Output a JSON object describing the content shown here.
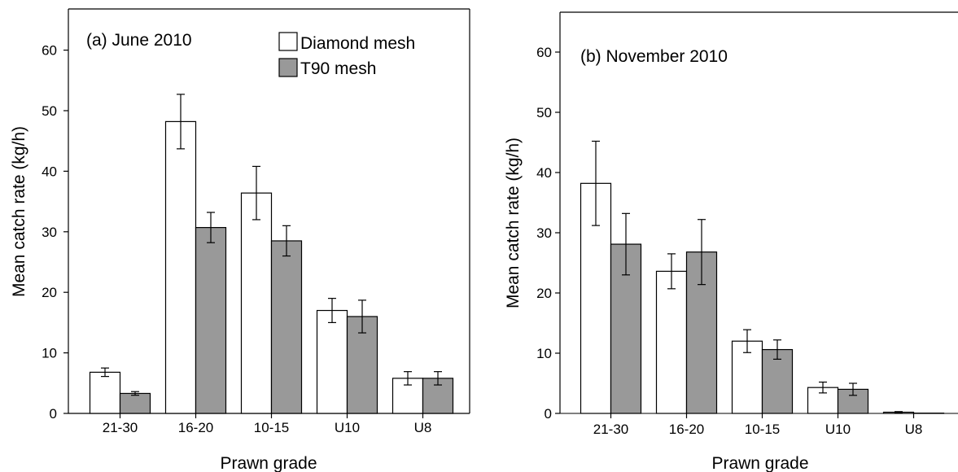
{
  "colors": {
    "diamond": "#ffffff",
    "t90": "#999999",
    "axis": "#000000"
  },
  "chart_data": [
    {
      "type": "bar",
      "title": "(a) June 2010",
      "xlabel": "Prawn grade",
      "ylabel": "Mean catch rate (kg/h)",
      "ylim": [
        0,
        65
      ],
      "yticks": [
        0,
        10,
        20,
        30,
        40,
        50,
        60
      ],
      "categories": [
        "21-30",
        "16-20",
        "10-15",
        "U10",
        "U8"
      ],
      "legend": {
        "position": "top-right",
        "entries": [
          "Diamond mesh",
          "T90 mesh"
        ]
      },
      "series": [
        {
          "name": "Diamond mesh",
          "values": [
            6.8,
            48.2,
            36.4,
            17.0,
            5.8
          ],
          "err": [
            0.7,
            4.5,
            4.4,
            2.0,
            1.1
          ]
        },
        {
          "name": "T90 mesh",
          "values": [
            3.3,
            30.7,
            28.5,
            16.0,
            5.8
          ],
          "err": [
            0.3,
            2.5,
            2.5,
            2.7,
            1.1
          ]
        }
      ]
    },
    {
      "type": "bar",
      "title": "(b) November 2010",
      "xlabel": "Prawn grade",
      "ylabel": "Mean catch rate (kg/h)",
      "ylim": [
        0,
        66
      ],
      "yticks": [
        0,
        10,
        20,
        30,
        40,
        50,
        60
      ],
      "categories": [
        "21-30",
        "16-20",
        "10-15",
        "U10",
        "U8"
      ],
      "series": [
        {
          "name": "Diamond mesh",
          "values": [
            38.2,
            23.6,
            12.0,
            4.3,
            0.2
          ],
          "err": [
            7.0,
            2.9,
            1.9,
            0.9,
            0.1
          ]
        },
        {
          "name": "T90 mesh",
          "values": [
            28.1,
            26.8,
            10.6,
            4.0,
            0.05
          ],
          "err": [
            5.1,
            5.4,
            1.6,
            1.0,
            0.0
          ]
        }
      ]
    }
  ]
}
